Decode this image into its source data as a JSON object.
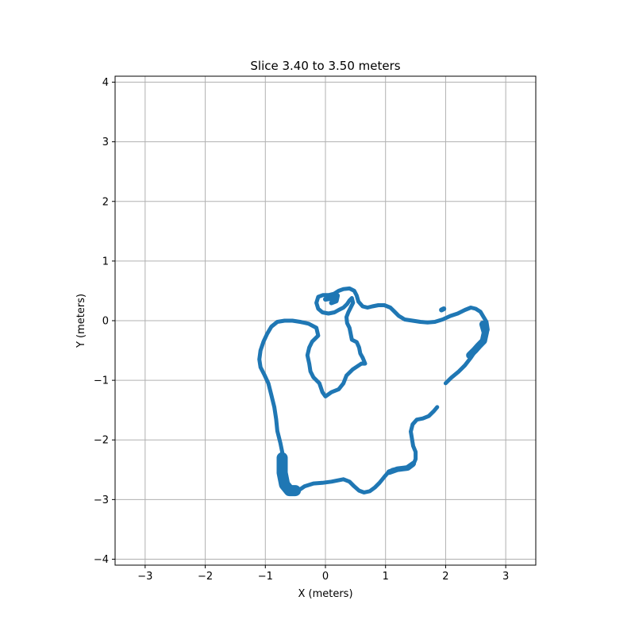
{
  "chart_data": {
    "type": "scatter",
    "title": "Slice 3.40 to 3.50 meters",
    "xlabel": "X (meters)",
    "ylabel": "Y (meters)",
    "xlim": [
      -3.5,
      3.5
    ],
    "ylim": [
      -4.1,
      4.1
    ],
    "xticks": [
      -3,
      -2,
      -1,
      0,
      1,
      2,
      3
    ],
    "yticks": [
      -4,
      -3,
      -2,
      -1,
      0,
      1,
      2,
      3,
      4
    ],
    "grid": true,
    "color": "#1f77b4",
    "series": [
      {
        "segments": [
          {
            "w": 5,
            "points": [
              [
                0.6,
                -0.72
              ],
              [
                0.45,
                -0.82
              ],
              [
                0.35,
                -0.92
              ],
              [
                0.3,
                -1.05
              ],
              [
                0.22,
                -1.15
              ],
              [
                0.1,
                -1.2
              ],
              [
                0.0,
                -1.27
              ],
              [
                -0.05,
                -1.2
              ],
              [
                -0.1,
                -1.05
              ],
              [
                -0.2,
                -0.95
              ],
              [
                -0.25,
                -0.85
              ],
              [
                -0.27,
                -0.72
              ],
              [
                -0.3,
                -0.58
              ],
              [
                -0.27,
                -0.45
              ],
              [
                -0.22,
                -0.35
              ],
              [
                -0.12,
                -0.25
              ],
              [
                -0.15,
                -0.12
              ],
              [
                -0.28,
                -0.05
              ],
              [
                -0.42,
                -0.02
              ],
              [
                -0.55,
                0.0
              ],
              [
                -0.68,
                0.0
              ],
              [
                -0.8,
                -0.02
              ],
              [
                -0.9,
                -0.1
              ],
              [
                -0.97,
                -0.22
              ],
              [
                -1.03,
                -0.35
              ],
              [
                -1.08,
                -0.5
              ],
              [
                -1.1,
                -0.65
              ],
              [
                -1.08,
                -0.78
              ],
              [
                -1.02,
                -0.9
              ],
              [
                -0.95,
                -1.05
              ],
              [
                -0.9,
                -1.25
              ],
              [
                -0.85,
                -1.45
              ],
              [
                -0.82,
                -1.65
              ],
              [
                -0.8,
                -1.85
              ],
              [
                -0.75,
                -2.05
              ],
              [
                -0.72,
                -2.2
              ],
              [
                -0.72,
                -2.4
              ],
              [
                -0.7,
                -2.55
              ],
              [
                -0.7,
                -2.7
              ],
              [
                -0.65,
                -2.82
              ],
              [
                -0.55,
                -2.87
              ],
              [
                -0.45,
                -2.85
              ],
              [
                -0.35,
                -2.78
              ],
              [
                -0.2,
                -2.73
              ],
              [
                -0.05,
                -2.72
              ],
              [
                0.1,
                -2.7
              ],
              [
                0.2,
                -2.68
              ],
              [
                0.3,
                -2.66
              ],
              [
                0.4,
                -2.7
              ],
              [
                0.48,
                -2.78
              ],
              [
                0.56,
                -2.85
              ],
              [
                0.64,
                -2.88
              ],
              [
                0.74,
                -2.86
              ],
              [
                0.82,
                -2.8
              ],
              [
                0.9,
                -2.72
              ],
              [
                0.98,
                -2.62
              ],
              [
                1.04,
                -2.55
              ],
              [
                1.12,
                -2.5
              ],
              [
                1.25,
                -2.48
              ],
              [
                1.38,
                -2.48
              ],
              [
                1.46,
                -2.42
              ],
              [
                1.5,
                -2.32
              ],
              [
                1.5,
                -2.2
              ],
              [
                1.46,
                -2.1
              ],
              [
                1.44,
                -1.98
              ],
              [
                1.42,
                -1.86
              ],
              [
                1.45,
                -1.74
              ],
              [
                1.52,
                -1.66
              ],
              [
                1.62,
                -1.64
              ],
              [
                1.72,
                -1.6
              ],
              [
                1.8,
                -1.52
              ],
              [
                1.86,
                -1.45
              ]
            ]
          },
          {
            "w": 5,
            "points": [
              [
                2.0,
                -1.05
              ],
              [
                2.1,
                -0.95
              ],
              [
                2.22,
                -0.85
              ],
              [
                2.32,
                -0.75
              ],
              [
                2.42,
                -0.62
              ],
              [
                2.5,
                -0.5
              ],
              [
                2.58,
                -0.4
              ],
              [
                2.66,
                -0.28
              ],
              [
                2.7,
                -0.15
              ],
              [
                2.68,
                -0.02
              ],
              [
                2.62,
                0.08
              ],
              [
                2.58,
                0.15
              ],
              [
                2.5,
                0.2
              ],
              [
                2.42,
                0.22
              ],
              [
                2.32,
                0.18
              ],
              [
                2.2,
                0.12
              ],
              [
                2.08,
                0.08
              ],
              [
                1.95,
                0.02
              ],
              [
                1.82,
                -0.02
              ],
              [
                1.7,
                -0.03
              ],
              [
                1.58,
                -0.02
              ],
              [
                1.45,
                0.0
              ],
              [
                1.32,
                0.02
              ],
              [
                1.22,
                0.08
              ],
              [
                1.15,
                0.15
              ],
              [
                1.08,
                0.22
              ],
              [
                0.98,
                0.26
              ],
              [
                0.88,
                0.26
              ],
              [
                0.78,
                0.24
              ],
              [
                0.7,
                0.22
              ],
              [
                0.62,
                0.24
              ],
              [
                0.55,
                0.32
              ],
              [
                0.52,
                0.42
              ],
              [
                0.48,
                0.5
              ],
              [
                0.4,
                0.54
              ],
              [
                0.3,
                0.53
              ],
              [
                0.22,
                0.5
              ],
              [
                0.14,
                0.45
              ],
              [
                0.06,
                0.43
              ],
              [
                -0.04,
                0.43
              ],
              [
                -0.12,
                0.4
              ],
              [
                -0.15,
                0.3
              ],
              [
                -0.12,
                0.2
              ],
              [
                -0.05,
                0.14
              ],
              [
                0.05,
                0.12
              ],
              [
                0.15,
                0.14
              ],
              [
                0.22,
                0.18
              ],
              [
                0.3,
                0.22
              ],
              [
                0.36,
                0.28
              ],
              [
                0.4,
                0.34
              ],
              [
                0.44,
                0.38
              ],
              [
                0.46,
                0.3
              ],
              [
                0.42,
                0.22
              ],
              [
                0.38,
                0.14
              ],
              [
                0.35,
                0.06
              ],
              [
                0.36,
                -0.04
              ],
              [
                0.4,
                -0.12
              ],
              [
                0.42,
                -0.22
              ],
              [
                0.44,
                -0.32
              ],
              [
                0.52,
                -0.36
              ],
              [
                0.56,
                -0.45
              ],
              [
                0.58,
                -0.55
              ],
              [
                0.62,
                -0.62
              ],
              [
                0.66,
                -0.72
              ],
              [
                0.6,
                -0.72
              ]
            ]
          },
          {
            "w": 6,
            "points": [
              [
                0.0,
                0.36
              ],
              [
                0.12,
                0.38
              ],
              [
                0.2,
                0.42
              ],
              [
                0.18,
                0.33
              ],
              [
                0.1,
                0.3
              ]
            ]
          },
          {
            "w": 6,
            "points": [
              [
                1.93,
                0.18
              ],
              [
                1.97,
                0.2
              ]
            ]
          },
          {
            "w": 14,
            "points": [
              [
                -0.72,
                -2.3
              ],
              [
                -0.72,
                -2.55
              ],
              [
                -0.68,
                -2.75
              ],
              [
                -0.6,
                -2.85
              ],
              [
                -0.5,
                -2.85
              ]
            ]
          },
          {
            "w": 9,
            "points": [
              [
                2.62,
                -0.06
              ],
              [
                2.66,
                -0.2
              ],
              [
                2.63,
                -0.34
              ],
              [
                2.55,
                -0.42
              ],
              [
                2.48,
                -0.5
              ],
              [
                2.4,
                -0.58
              ]
            ]
          },
          {
            "w": 7,
            "points": [
              [
                1.06,
                -2.54
              ],
              [
                1.2,
                -2.49
              ],
              [
                1.36,
                -2.47
              ],
              [
                1.46,
                -2.4
              ]
            ]
          }
        ]
      }
    ]
  }
}
